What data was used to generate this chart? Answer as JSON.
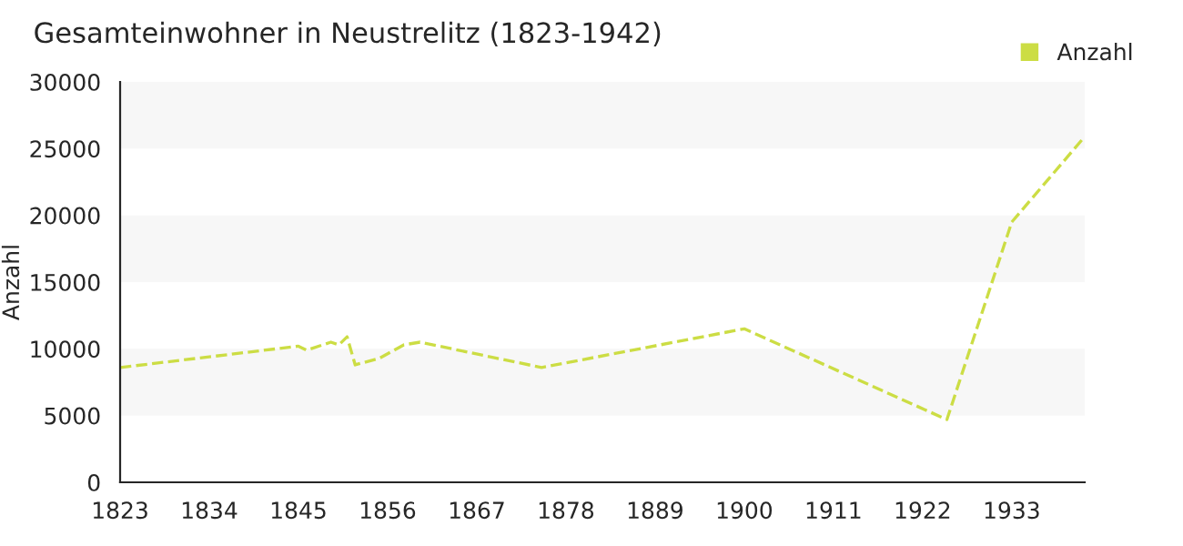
{
  "chart_data": {
    "type": "line",
    "title": "Gesamteinwohner in Neustrelitz (1823-1942)",
    "ylabel": "Anzahl",
    "x": [
      1823,
      1845,
      1846,
      1849,
      1850,
      1851,
      1852,
      1855,
      1858,
      1860,
      1875,
      1900,
      1925,
      1933,
      1942
    ],
    "series": [
      {
        "name": "Anzahl",
        "color": "#ccdd44",
        "values": [
          8600,
          10200,
          9900,
          10500,
          10300,
          10900,
          8800,
          9300,
          10300,
          10500,
          8600,
          11500,
          4700,
          19500,
          25900
        ]
      }
    ],
    "xlim": [
      1823,
      1942
    ],
    "xticks": [
      1823,
      1834,
      1845,
      1856,
      1867,
      1878,
      1889,
      1900,
      1911,
      1922,
      1933
    ],
    "ylim": [
      0,
      30000
    ],
    "yticks": [
      0,
      5000,
      10000,
      15000,
      20000,
      25000,
      30000
    ],
    "bands": [
      {
        "axis": "y",
        "from": 5000,
        "to": 10000,
        "color": "#f7f7f7"
      },
      {
        "axis": "y",
        "from": 15000,
        "to": 20000,
        "color": "#f7f7f7"
      },
      {
        "axis": "y",
        "from": 25000,
        "to": 30000,
        "color": "#f7f7f7"
      }
    ],
    "legend": "top right",
    "line_style": "dashed",
    "marker": "none"
  }
}
